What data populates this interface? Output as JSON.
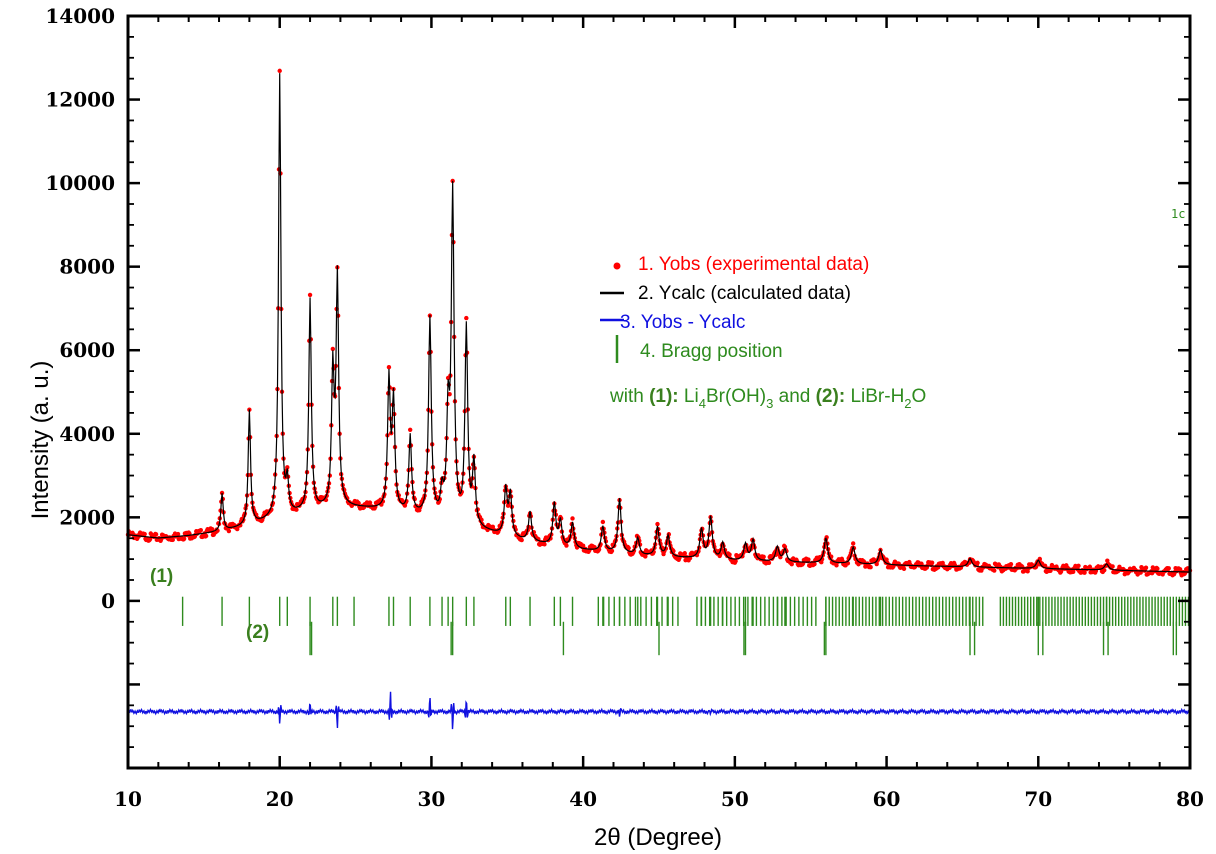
{
  "chart_data": {
    "type": "line",
    "xlabel": "2θ (Degree)",
    "ylabel": "Intensity  (a. u.)",
    "xlim": [
      10,
      80
    ],
    "ylim": [
      -4000,
      14000
    ],
    "x_ticks": [
      10,
      20,
      30,
      40,
      50,
      60,
      70,
      80
    ],
    "y_ticks": [
      0,
      2000,
      4000,
      6000,
      8000,
      10000,
      12000,
      14000
    ],
    "grid": false,
    "legend_position": "center-right",
    "colors": {
      "obs": "#ff0000",
      "calc": "#000000",
      "diff": "#1010e0",
      "bragg": "#2e8b1e",
      "phase_label": "#3a7f1e"
    },
    "series": [
      {
        "name": "1.  Yobs (experimental data)",
        "marker": "point",
        "background": [
          [
            10,
            1580
          ],
          [
            12,
            1500
          ],
          [
            14,
            1560
          ],
          [
            16,
            1650
          ],
          [
            18,
            1800
          ],
          [
            20,
            1980
          ],
          [
            22,
            2150
          ],
          [
            24,
            2250
          ],
          [
            26,
            2200
          ],
          [
            28,
            2100
          ],
          [
            30,
            1980
          ],
          [
            32,
            1800
          ],
          [
            34,
            1620
          ],
          [
            36,
            1450
          ],
          [
            38,
            1320
          ],
          [
            40,
            1220
          ],
          [
            44,
            1080
          ],
          [
            50,
            960
          ],
          [
            56,
            900
          ],
          [
            62,
            840
          ],
          [
            68,
            790
          ],
          [
            74,
            740
          ],
          [
            80,
            690
          ]
        ],
        "peaks": [
          [
            16.2,
            900
          ],
          [
            18.0,
            2750
          ],
          [
            20.0,
            10600
          ],
          [
            20.5,
            750
          ],
          [
            22.0,
            5050
          ],
          [
            23.5,
            3200
          ],
          [
            23.8,
            5450
          ],
          [
            27.2,
            3100
          ],
          [
            27.5,
            2600
          ],
          [
            28.6,
            1850
          ],
          [
            29.9,
            4750
          ],
          [
            30.7,
            600
          ],
          [
            31.1,
            2400
          ],
          [
            31.4,
            7800
          ],
          [
            32.3,
            4700
          ],
          [
            32.8,
            1500
          ],
          [
            34.9,
            1100
          ],
          [
            35.2,
            1000
          ],
          [
            36.5,
            700
          ],
          [
            38.1,
            1000
          ],
          [
            38.5,
            600
          ],
          [
            39.3,
            600
          ],
          [
            41.3,
            600
          ],
          [
            42.4,
            1300
          ],
          [
            43.6,
            400
          ],
          [
            44.9,
            700
          ],
          [
            45.6,
            500
          ],
          [
            47.8,
            700
          ],
          [
            48.4,
            1000
          ],
          [
            49.2,
            400
          ],
          [
            50.7,
            400
          ],
          [
            51.2,
            500
          ],
          [
            52.8,
            350
          ],
          [
            53.3,
            300
          ],
          [
            56.0,
            600
          ],
          [
            57.8,
            400
          ],
          [
            59.6,
            350
          ],
          [
            65.5,
            200
          ],
          [
            70.0,
            200
          ],
          [
            74.5,
            150
          ]
        ]
      },
      {
        "name": "2.  Ycalc (calculated data)",
        "marker": "line",
        "same_as": "obs"
      },
      {
        "name": "3. Yobs - Ycalc",
        "marker": "line",
        "offset": -2650,
        "spikes": [
          [
            20.0,
            -300
          ],
          [
            22.0,
            200
          ],
          [
            23.8,
            -400
          ],
          [
            27.3,
            450
          ],
          [
            29.9,
            350
          ],
          [
            31.4,
            -450
          ],
          [
            32.3,
            300
          ],
          [
            42.4,
            -150
          ],
          [
            48.4,
            -100
          ]
        ]
      },
      {
        "name": "4.  Bragg position",
        "marker": "tick",
        "phases": [
          {
            "label": "(1)",
            "positions": [
              13.6,
              16.2,
              18.0,
              20.0,
              20.5,
              22.0,
              23.5,
              23.8,
              24.9,
              27.2,
              27.5,
              28.6,
              29.9,
              30.7,
              31.1,
              31.4,
              32.3,
              32.8,
              34.9,
              35.2,
              36.5,
              38.1,
              38.5,
              39.3,
              41.3,
              42.4,
              43.6,
              44.9,
              45.6,
              47.8,
              48.4,
              49.2,
              50.7,
              51.2,
              52.8,
              53.3,
              56.0,
              57.8,
              59.6,
              65.5,
              70.0,
              74.5
            ],
            "dense_regions": [
              [
                41.0,
                46.5,
                0.35
              ],
              [
                47.5,
                55.5,
                0.28
              ],
              [
                56.0,
                66.5,
                0.22
              ],
              [
                67.5,
                80,
                0.2
              ]
            ]
          },
          {
            "label": "(2)",
            "positions": [
              22.0,
              22.1,
              31.3,
              31.4,
              38.7,
              45.0,
              50.6,
              50.7,
              55.9,
              56.0,
              65.5,
              65.8,
              70.0,
              70.3,
              74.3,
              74.6,
              78.9,
              79.1
            ]
          }
        ]
      }
    ],
    "legend_note": {
      "prefix": "with ",
      "phase1_tag": "(1):",
      "phase1_formula": [
        "Li",
        "4",
        "Br(OH)",
        "3"
      ],
      "joiner": "  and   ",
      "phase2_tag": "(2):",
      "phase2_formula": [
        "LiBr-H",
        "2",
        "O"
      ]
    },
    "annotations": [
      {
        "text": "1c"
      }
    ]
  }
}
